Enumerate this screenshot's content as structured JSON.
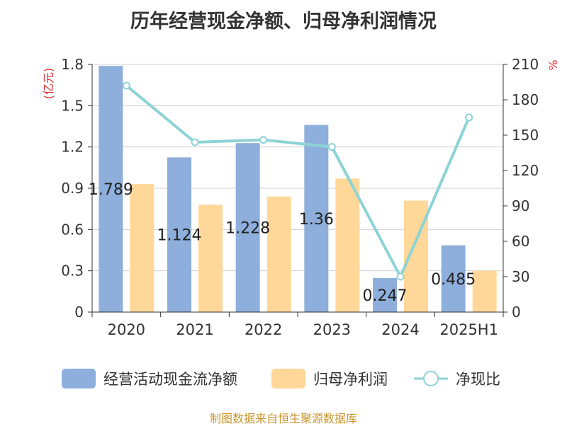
{
  "chart_data": {
    "type": "bar",
    "title": "历年经营现金净额、归母净利润情况",
    "categories": [
      "2020",
      "2021",
      "2022",
      "2023",
      "2024",
      "2025H1"
    ],
    "y_left_label": "(亿元)",
    "y_right_label": "%",
    "y_left_ticks": [
      "0",
      "0.3",
      "0.6",
      "0.9",
      "1.2",
      "1.5",
      "1.8"
    ],
    "y_right_ticks": [
      "0",
      "30",
      "60",
      "90",
      "120",
      "150",
      "180",
      "210"
    ],
    "ylim_left": [
      0,
      1.8
    ],
    "ylim_right": [
      0,
      210
    ],
    "series": [
      {
        "name": "经营活动现金流净额",
        "kind": "bar",
        "axis": "left",
        "values": [
          1.789,
          1.124,
          1.228,
          1.36,
          0.247,
          0.485
        ],
        "labels": [
          "1.789",
          "1.124",
          "1.228",
          "1.36",
          "0.247",
          "0.485"
        ],
        "color": "#8eaedb"
      },
      {
        "name": "归母净利润",
        "kind": "bar",
        "axis": "left",
        "values": [
          0.93,
          0.78,
          0.84,
          0.97,
          0.81,
          0.3
        ],
        "color": "#ffd899"
      },
      {
        "name": "净现比",
        "kind": "line",
        "axis": "right",
        "values": [
          192,
          144,
          146,
          140,
          30,
          165
        ],
        "color": "#8dd3d6"
      }
    ],
    "source": "制图数据来自恒生聚源数据库",
    "axis_label_color": "#e03030",
    "source_color": "#c8962e",
    "grid": true,
    "legend_position": "bottom"
  }
}
